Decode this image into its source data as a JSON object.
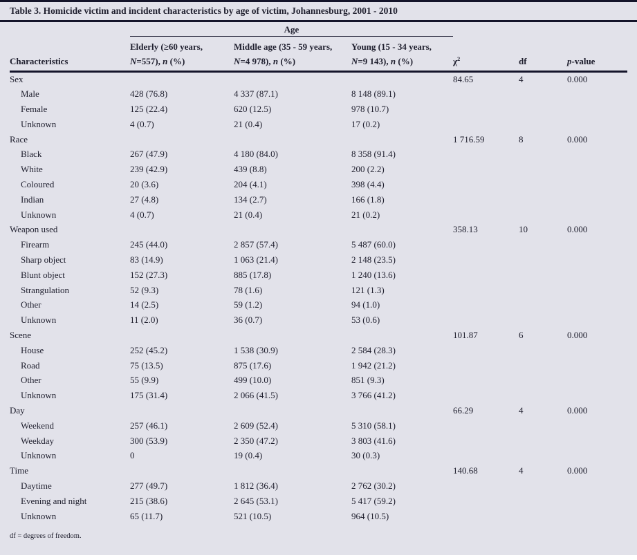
{
  "page": {
    "background_color": "#e2e2ea",
    "text_color": "#20202f",
    "rule_color": "#14142a"
  },
  "table": {
    "title": "Table 3. Homicide victim and incident characteristics by age of victim, Johannesburg, 2001 - 2010",
    "age_group_label": "Age",
    "characteristics_label": "Characteristics",
    "age_columns": [
      {
        "line1": "Elderly (≥60 years,",
        "line2": [
          {
            "text": "N",
            "italic": true
          },
          {
            "text": "=557), "
          },
          {
            "text": "n",
            "italic": true
          },
          {
            "text": " (%)"
          }
        ]
      },
      {
        "line1": "Middle age (35 - 59 years,",
        "line2": [
          {
            "text": "N",
            "italic": true
          },
          {
            "text": "=4 978), "
          },
          {
            "text": "n",
            "italic": true
          },
          {
            "text": " (%)"
          }
        ]
      },
      {
        "line1": "Young (15 - 34 years,",
        "line2": [
          {
            "text": "N",
            "italic": true
          },
          {
            "text": "=9 143), "
          },
          {
            "text": "n",
            "italic": true
          },
          {
            "text": " (%)"
          }
        ]
      }
    ],
    "stat_columns": [
      {
        "segments": [
          {
            "text": "χ"
          },
          {
            "text": "2",
            "sup": true
          }
        ]
      },
      {
        "segments": [
          {
            "text": "df"
          }
        ]
      },
      {
        "segments": [
          {
            "text": "p",
            "italic": true
          },
          {
            "text": "-value"
          }
        ]
      }
    ],
    "rows": [
      {
        "label": "Sex",
        "indent": false,
        "elderly": "",
        "middle": "",
        "young": "",
        "chi2": "84.65",
        "df": "4",
        "p": "0.000"
      },
      {
        "label": "Male",
        "indent": true,
        "elderly": "428 (76.8)",
        "middle": "4 337 (87.1)",
        "young": "8 148 (89.1)",
        "chi2": "",
        "df": "",
        "p": ""
      },
      {
        "label": "Female",
        "indent": true,
        "elderly": "125 (22.4)",
        "middle": "620 (12.5)",
        "young": "978 (10.7)",
        "chi2": "",
        "df": "",
        "p": ""
      },
      {
        "label": "Unknown",
        "indent": true,
        "elderly": "4 (0.7)",
        "middle": "21 (0.4)",
        "young": "17 (0.2)",
        "chi2": "",
        "df": "",
        "p": ""
      },
      {
        "label": "Race",
        "indent": false,
        "elderly": "",
        "middle": "",
        "young": "",
        "chi2": "1 716.59",
        "df": "8",
        "p": "0.000"
      },
      {
        "label": "Black",
        "indent": true,
        "elderly": "267 (47.9)",
        "middle": "4 180 (84.0)",
        "young": "8 358 (91.4)",
        "chi2": "",
        "df": "",
        "p": ""
      },
      {
        "label": "White",
        "indent": true,
        "elderly": "239 (42.9)",
        "middle": "439 (8.8)",
        "young": "200 (2.2)",
        "chi2": "",
        "df": "",
        "p": ""
      },
      {
        "label": "Coloured",
        "indent": true,
        "elderly": "20 (3.6)",
        "middle": "204 (4.1)",
        "young": "398 (4.4)",
        "chi2": "",
        "df": "",
        "p": ""
      },
      {
        "label": "Indian",
        "indent": true,
        "elderly": "27 (4.8)",
        "middle": "134 (2.7)",
        "young": "166 (1.8)",
        "chi2": "",
        "df": "",
        "p": ""
      },
      {
        "label": "Unknown",
        "indent": true,
        "elderly": "4 (0.7)",
        "middle": "21 (0.4)",
        "young": "21 (0.2)",
        "chi2": "",
        "df": "",
        "p": ""
      },
      {
        "label": "Weapon used",
        "indent": false,
        "elderly": "",
        "middle": "",
        "young": "",
        "chi2": "358.13",
        "df": "10",
        "p": "0.000"
      },
      {
        "label": "Firearm",
        "indent": true,
        "elderly": "245 (44.0)",
        "middle": "2 857 (57.4)",
        "young": "5 487 (60.0)",
        "chi2": "",
        "df": "",
        "p": ""
      },
      {
        "label": "Sharp object",
        "indent": true,
        "elderly": "83 (14.9)",
        "middle": "1 063 (21.4)",
        "young": "2 148 (23.5)",
        "chi2": "",
        "df": "",
        "p": ""
      },
      {
        "label": "Blunt object",
        "indent": true,
        "elderly": "152 (27.3)",
        "middle": "885 (17.8)",
        "young": "1 240 (13.6)",
        "chi2": "",
        "df": "",
        "p": ""
      },
      {
        "label": "Strangulation",
        "indent": true,
        "elderly": "52 (9.3)",
        "middle": "78 (1.6)",
        "young": "121 (1.3)",
        "chi2": "",
        "df": "",
        "p": ""
      },
      {
        "label": "Other",
        "indent": true,
        "elderly": "14 (2.5)",
        "middle": "59 (1.2)",
        "young": "94 (1.0)",
        "chi2": "",
        "df": "",
        "p": ""
      },
      {
        "label": "Unknown",
        "indent": true,
        "elderly": "11 (2.0)",
        "middle": "36 (0.7)",
        "young": "53 (0.6)",
        "chi2": "",
        "df": "",
        "p": ""
      },
      {
        "label": "Scene",
        "indent": false,
        "elderly": "",
        "middle": "",
        "young": "",
        "chi2": "101.87",
        "df": "6",
        "p": "0.000"
      },
      {
        "label": "House",
        "indent": true,
        "elderly": "252 (45.2)",
        "middle": "1 538 (30.9)",
        "young": "2 584 (28.3)",
        "chi2": "",
        "df": "",
        "p": ""
      },
      {
        "label": "Road",
        "indent": true,
        "elderly": "75 (13.5)",
        "middle": "875 (17.6)",
        "young": "1 942 (21.2)",
        "chi2": "",
        "df": "",
        "p": ""
      },
      {
        "label": "Other",
        "indent": true,
        "elderly": "55 (9.9)",
        "middle": "499 (10.0)",
        "young": "851 (9.3)",
        "chi2": "",
        "df": "",
        "p": ""
      },
      {
        "label": "Unknown",
        "indent": true,
        "elderly": "175 (31.4)",
        "middle": "2 066 (41.5)",
        "young": "3 766 (41.2)",
        "chi2": "",
        "df": "",
        "p": ""
      },
      {
        "label": "Day",
        "indent": false,
        "elderly": "",
        "middle": "",
        "young": "",
        "chi2": "66.29",
        "df": "4",
        "p": "0.000"
      },
      {
        "label": "Weekend",
        "indent": true,
        "elderly": "257 (46.1)",
        "middle": "2 609 (52.4)",
        "young": "5 310 (58.1)",
        "chi2": "",
        "df": "",
        "p": ""
      },
      {
        "label": "Weekday",
        "indent": true,
        "elderly": "300 (53.9)",
        "middle": "2 350 (47.2)",
        "young": "3 803 (41.6)",
        "chi2": "",
        "df": "",
        "p": ""
      },
      {
        "label": "Unknown",
        "indent": true,
        "elderly": "0",
        "middle": "19 (0.4)",
        "young": "30 (0.3)",
        "chi2": "",
        "df": "",
        "p": ""
      },
      {
        "label": "Time",
        "indent": false,
        "elderly": "",
        "middle": "",
        "young": "",
        "chi2": "140.68",
        "df": "4",
        "p": "0.000"
      },
      {
        "label": "Daytime",
        "indent": true,
        "elderly": "277 (49.7)",
        "middle": "1 812 (36.4)",
        "young": "2 762 (30.2)",
        "chi2": "",
        "df": "",
        "p": ""
      },
      {
        "label": "Evening and night",
        "indent": true,
        "elderly": "215 (38.6)",
        "middle": "2 645 (53.1)",
        "young": "5 417 (59.2)",
        "chi2": "",
        "df": "",
        "p": ""
      },
      {
        "label": "Unknown",
        "indent": true,
        "elderly": "65 (11.7)",
        "middle": "521 (10.5)",
        "young": "964 (10.5)",
        "chi2": "",
        "df": "",
        "p": ""
      }
    ],
    "footnote": "df = degrees of freedom."
  }
}
